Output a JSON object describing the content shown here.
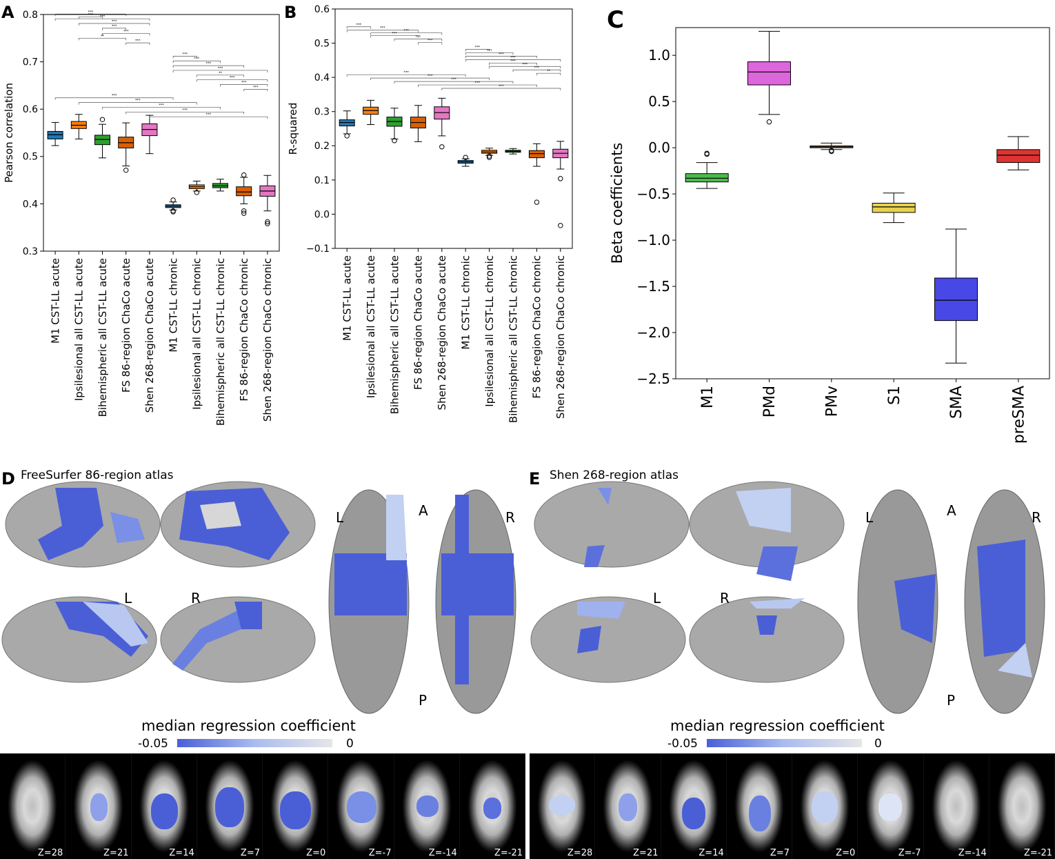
{
  "colors": {
    "acute_chronic_palette": [
      "#1f77b4",
      "#ff7f0e",
      "#2ca02c",
      "#d95f02",
      "#e377c2"
    ],
    "beta_palette": [
      "#4cbb4c",
      "#dd66dd",
      "#e69900",
      "#e6d24c",
      "#4848e6",
      "#dd3333"
    ],
    "cmap_low": "#4a5fd6",
    "cmap_high": "#e6e6e6",
    "brain_gray": "#a8a8a8"
  },
  "chart_data": [
    {
      "panel": "A",
      "type": "box",
      "ylabel": "Pearson correlation",
      "ylim": [
        0.3,
        0.8
      ],
      "yticks": [
        "0.3",
        "0.4",
        "0.5",
        "0.6",
        "0.7",
        "0.8"
      ],
      "categories": [
        "M1 CST-LL acute",
        "Ipsilesional all CST-LL acute",
        "Bihemispheric all CST-LL acute",
        "FS 86-region ChaCo acute",
        "Shen 268-region ChaCo acute",
        "M1 CST-LL chronic",
        "Ipsilesional all CST-LL chronic",
        "Bihemispheric all CST-LL chronic",
        "FS 86-region ChaCo chronic",
        "Shen 268-region ChaCo chronic"
      ],
      "boxes": [
        {
          "wl": 0.523,
          "q1": 0.537,
          "med": 0.546,
          "q3": 0.553,
          "wh": 0.572,
          "out": []
        },
        {
          "wl": 0.537,
          "q1": 0.559,
          "med": 0.566,
          "q3": 0.574,
          "wh": 0.589,
          "out": []
        },
        {
          "wl": 0.497,
          "q1": 0.525,
          "med": 0.536,
          "q3": 0.545,
          "wh": 0.568,
          "out": [
            0.578
          ]
        },
        {
          "wl": 0.48,
          "q1": 0.518,
          "med": 0.529,
          "q3": 0.541,
          "wh": 0.571,
          "out": [
            0.471
          ]
        },
        {
          "wl": 0.506,
          "q1": 0.544,
          "med": 0.557,
          "q3": 0.569,
          "wh": 0.587,
          "out": []
        },
        {
          "wl": 0.387,
          "q1": 0.392,
          "med": 0.395,
          "q3": 0.398,
          "wh": 0.404,
          "out": [
            0.383,
            0.385,
            0.408
          ]
        },
        {
          "wl": 0.427,
          "q1": 0.432,
          "med": 0.436,
          "q3": 0.44,
          "wh": 0.448,
          "out": [
            0.424
          ]
        },
        {
          "wl": 0.427,
          "q1": 0.434,
          "med": 0.438,
          "q3": 0.443,
          "wh": 0.452,
          "out": []
        },
        {
          "wl": 0.4,
          "q1": 0.417,
          "med": 0.425,
          "q3": 0.436,
          "wh": 0.456,
          "out": [
            0.385,
            0.38,
            0.461
          ]
        },
        {
          "wl": 0.385,
          "q1": 0.416,
          "med": 0.427,
          "q3": 0.438,
          "wh": 0.46,
          "out": [
            0.362,
            0.358
          ]
        }
      ],
      "brackets": [
        {
          "i": 0,
          "j": 3,
          "y": 0.801,
          "label": "***"
        },
        {
          "i": 0,
          "j": 4,
          "y": 0.791,
          "label": "***"
        },
        {
          "i": 1,
          "j": 4,
          "y": 0.781,
          "label": "***"
        },
        {
          "i": 2,
          "j": 3,
          "y": 0.771,
          "label": "***"
        },
        {
          "i": 1,
          "j": 2,
          "y": 0.795,
          "label": "***"
        },
        {
          "i": 2,
          "j": 4,
          "y": 0.76,
          "label": "***"
        },
        {
          "i": 1,
          "j": 3,
          "y": 0.75,
          "label": "**"
        },
        {
          "i": 3,
          "j": 4,
          "y": 0.74,
          "label": "***"
        },
        {
          "i": 5,
          "j": 6,
          "y": 0.712,
          "label": "***"
        },
        {
          "i": 5,
          "j": 7,
          "y": 0.702,
          "label": "***"
        },
        {
          "i": 5,
          "j": 8,
          "y": 0.692,
          "label": "***"
        },
        {
          "i": 5,
          "j": 9,
          "y": 0.682,
          "label": "***"
        },
        {
          "i": 6,
          "j": 8,
          "y": 0.672,
          "label": "**"
        },
        {
          "i": 6,
          "j": 9,
          "y": 0.662,
          "label": "***"
        },
        {
          "i": 7,
          "j": 9,
          "y": 0.652,
          "label": "***"
        },
        {
          "i": 8,
          "j": 9,
          "y": 0.642,
          "label": "***"
        },
        {
          "i": 0,
          "j": 5,
          "y": 0.624,
          "label": "***"
        },
        {
          "i": 1,
          "j": 6,
          "y": 0.614,
          "label": "***"
        },
        {
          "i": 2,
          "j": 7,
          "y": 0.604,
          "label": "***"
        },
        {
          "i": 3,
          "j": 8,
          "y": 0.594,
          "label": "***"
        },
        {
          "i": 4,
          "j": 9,
          "y": 0.584,
          "label": "***"
        }
      ]
    },
    {
      "panel": "B",
      "type": "box",
      "ylabel": "R-squared",
      "ylim": [
        -0.1,
        0.6
      ],
      "yticks": [
        "−0.1",
        "0.0",
        "0.1",
        "0.2",
        "0.3",
        "0.4",
        "0.5",
        "0.6"
      ],
      "categories": [
        "M1 CST-LL acute",
        "Ipsilesional all CST-LL acute",
        "Bihemispheric all CST-LL acute",
        "FS 86-region ChaCo acute",
        "Shen 268-region ChaCo acute",
        "M1 CST-LL chronic",
        "Ipsilesional all CST-LL chronic",
        "Bihemispheric all CST-LL chronic",
        "FS 86-region ChaCo chronic",
        "Shen 268-region ChaCo chronic"
      ],
      "boxes": [
        {
          "wl": 0.235,
          "q1": 0.258,
          "med": 0.268,
          "q3": 0.276,
          "wh": 0.302,
          "out": [
            0.229
          ]
        },
        {
          "wl": 0.262,
          "q1": 0.292,
          "med": 0.303,
          "q3": 0.313,
          "wh": 0.333,
          "out": []
        },
        {
          "wl": 0.22,
          "q1": 0.257,
          "med": 0.271,
          "q3": 0.284,
          "wh": 0.31,
          "out": [
            0.215
          ]
        },
        {
          "wl": 0.212,
          "q1": 0.252,
          "med": 0.268,
          "q3": 0.284,
          "wh": 0.318,
          "out": []
        },
        {
          "wl": 0.229,
          "q1": 0.278,
          "med": 0.297,
          "q3": 0.314,
          "wh": 0.339,
          "out": [
            0.197
          ]
        },
        {
          "wl": 0.14,
          "q1": 0.149,
          "med": 0.153,
          "q3": 0.157,
          "wh": 0.162,
          "out": [
            0.166
          ]
        },
        {
          "wl": 0.172,
          "q1": 0.178,
          "med": 0.182,
          "q3": 0.187,
          "wh": 0.193,
          "out": [
            0.166,
            0.17
          ]
        },
        {
          "wl": 0.176,
          "q1": 0.181,
          "med": 0.184,
          "q3": 0.187,
          "wh": 0.192,
          "out": []
        },
        {
          "wl": 0.14,
          "q1": 0.165,
          "med": 0.177,
          "q3": 0.186,
          "wh": 0.206,
          "out": [
            0.035
          ]
        },
        {
          "wl": 0.132,
          "q1": 0.165,
          "med": 0.178,
          "q3": 0.19,
          "wh": 0.213,
          "out": [
            0.104,
            -0.033
          ]
        }
      ],
      "brackets": [
        {
          "i": 0,
          "j": 1,
          "y": 0.548,
          "label": "***"
        },
        {
          "i": 0,
          "j": 3,
          "y": 0.538,
          "label": "***"
        },
        {
          "i": 1,
          "j": 4,
          "y": 0.53,
          "label": "***"
        },
        {
          "i": 1,
          "j": 3,
          "y": 0.522,
          "label": "***"
        },
        {
          "i": 2,
          "j": 4,
          "y": 0.512,
          "label": "***"
        },
        {
          "i": 3,
          "j": 4,
          "y": 0.502,
          "label": "***"
        },
        {
          "i": 5,
          "j": 6,
          "y": 0.482,
          "label": "***"
        },
        {
          "i": 5,
          "j": 7,
          "y": 0.472,
          "label": "***"
        },
        {
          "i": 5,
          "j": 8,
          "y": 0.462,
          "label": "***"
        },
        {
          "i": 5,
          "j": 9,
          "y": 0.452,
          "label": "***"
        },
        {
          "i": 6,
          "j": 8,
          "y": 0.442,
          "label": "***"
        },
        {
          "i": 6,
          "j": 9,
          "y": 0.432,
          "label": "***"
        },
        {
          "i": 7,
          "j": 9,
          "y": 0.422,
          "label": "***"
        },
        {
          "i": 8,
          "j": 9,
          "y": 0.412,
          "label": "**"
        },
        {
          "i": 0,
          "j": 5,
          "y": 0.408,
          "label": "***"
        },
        {
          "i": 1,
          "j": 6,
          "y": 0.398,
          "label": "***"
        },
        {
          "i": 2,
          "j": 7,
          "y": 0.388,
          "label": "***"
        },
        {
          "i": 3,
          "j": 8,
          "y": 0.378,
          "label": "***"
        },
        {
          "i": 4,
          "j": 9,
          "y": 0.368,
          "label": "***"
        }
      ]
    },
    {
      "panel": "C",
      "type": "box",
      "ylabel": "Beta coefficients",
      "ylim": [
        -2.5,
        1.3
      ],
      "yticks": [
        "−2.5",
        "−2.0",
        "−1.5",
        "−1.0",
        "−0.5",
        "0.0",
        "0.5",
        "1.0"
      ],
      "categories": [
        "M1",
        "PMd",
        "PMv",
        "S1",
        "SMA",
        "preSMA"
      ],
      "boxes": [
        {
          "wl": -0.44,
          "q1": -0.37,
          "med": -0.33,
          "q3": -0.28,
          "wh": -0.16,
          "out": [
            -0.07,
            -0.06
          ]
        },
        {
          "wl": 0.36,
          "q1": 0.68,
          "med": 0.82,
          "q3": 0.93,
          "wh": 1.26,
          "out": [
            0.28
          ]
        },
        {
          "wl": -0.02,
          "q1": 0.0,
          "med": 0.01,
          "q3": 0.02,
          "wh": 0.05,
          "out": [
            -0.04,
            -0.03
          ]
        },
        {
          "wl": -0.81,
          "q1": -0.7,
          "med": -0.64,
          "q3": -0.6,
          "wh": -0.49,
          "out": []
        },
        {
          "wl": -2.33,
          "q1": -1.87,
          "med": -1.65,
          "q3": -1.41,
          "wh": -0.88,
          "out": []
        },
        {
          "wl": -0.24,
          "q1": -0.16,
          "med": -0.08,
          "q3": -0.02,
          "wh": 0.12,
          "out": []
        }
      ]
    }
  ],
  "panels": {
    "A": "A",
    "B": "B",
    "C": "C",
    "D": "D",
    "E": "E"
  },
  "brain": {
    "D_title": "FreeSurfer 86-region atlas",
    "E_title": "Shen 268-region atlas",
    "D_labels": {
      "lat_left": "L",
      "lat_right": "R",
      "top_left": "L",
      "top_a": "A",
      "top_right": "R",
      "top_p": "P"
    },
    "E_labels": {
      "lat_left": "L",
      "lat_right": "R",
      "top_left": "L",
      "top_a": "A",
      "top_right": "R",
      "top_p": "P"
    },
    "colorbar_title": "median regression coefficient",
    "colorbar_min": "-0.05",
    "colorbar_max": "0",
    "slice_labels": [
      "Z=28",
      "Z=21",
      "Z=14",
      "Z=7",
      "Z=0",
      "Z=-7",
      "Z=-14",
      "Z=-21"
    ]
  }
}
